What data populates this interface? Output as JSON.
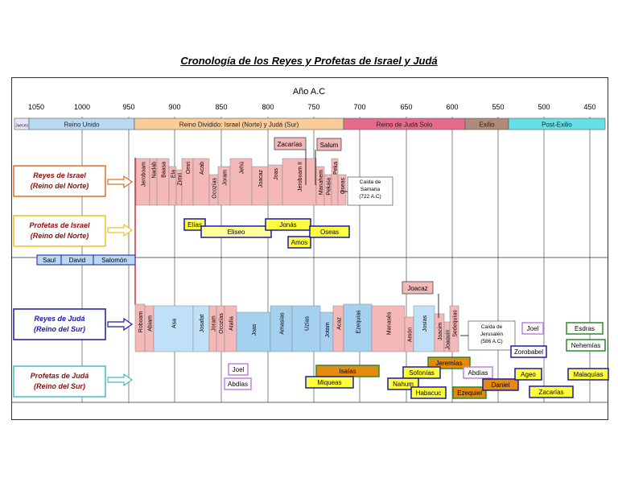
{
  "title": "Cronología de los Reyes y Profetas de Israel y Judá",
  "axis": {
    "label": "Año A.C",
    "ticks": [
      "1050",
      "1000",
      "950",
      "900",
      "850",
      "800",
      "750",
      "700",
      "650",
      "600",
      "550",
      "500",
      "450"
    ]
  },
  "periods": [
    {
      "label": "Jueces",
      "color": "#e6e6fa"
    },
    {
      "label": "Reino Unido",
      "color": "#b9d9f3"
    },
    {
      "label": "Reino Dividido: Israel (Norte) y Judá (Sur)",
      "color": "#f9cc99"
    },
    {
      "label": "Reino de Judá Solo",
      "color": "#e86a8a"
    },
    {
      "label": "Exilio",
      "color": "#b08a7a"
    },
    {
      "label": "Post-Exilio",
      "color": "#66e0e6"
    }
  ],
  "rows": {
    "israel_kings": "Reyes de Israel\n(Reino del Norte)",
    "israel_prophets": "Profetas de Israel\n(Reino del Norte)",
    "juda_kings": "Reyes de Judá\n(Reino del Sur)",
    "juda_prophets": "Profetas de Judá\n(Reino del Sur)"
  },
  "united_kings": [
    "Saul",
    "David",
    "Salomón"
  ],
  "israel_kings": [
    "Jeroboam",
    "Nadab",
    "Baasa",
    "Ela",
    "Zimri",
    "Omri",
    "Acab",
    "Ocozías",
    "Joram",
    "Jehú",
    "Joacaz",
    "Joas",
    "Jeroboam II",
    "Manahem",
    "Pekaía",
    "Peka",
    "Oseas"
  ],
  "israel_kings_top": [
    "Zacarías",
    "Salum"
  ],
  "israel_prophets": [
    "Elías",
    "Eliseo",
    "Jonás",
    "Amos",
    "Oseas"
  ],
  "juda_kings": [
    "Roboam",
    "Abiam",
    "Asa",
    "Josafat",
    "Joram",
    "Ocozías",
    "Atalía",
    "Joas",
    "Amasías",
    "Uzías",
    "Jotam",
    "Acaz",
    "Ezequías",
    "Manasés",
    "Amón",
    "Josías",
    "Joacim",
    "Joaquín",
    "Sedequías"
  ],
  "juda_kings_top": [
    "Joacaz"
  ],
  "juda_prophets": [
    "Joel",
    "Abdías",
    "Isaías",
    "Miqueas",
    "Jeremías",
    "Sofonías",
    "Nahum",
    "Habacuc",
    "Abdías",
    "Ezequiel",
    "Daniel",
    "Joel",
    "Zorobabel",
    "Ageo",
    "Zacarías",
    "Esdras",
    "Nehemías",
    "Malaquías"
  ],
  "notes": {
    "samaria": [
      "Caída de",
      "Samaria",
      "(722 A.C)"
    ],
    "jerusalen": [
      "Caída de",
      "Jerusalén",
      "(586 A.C)"
    ]
  }
}
